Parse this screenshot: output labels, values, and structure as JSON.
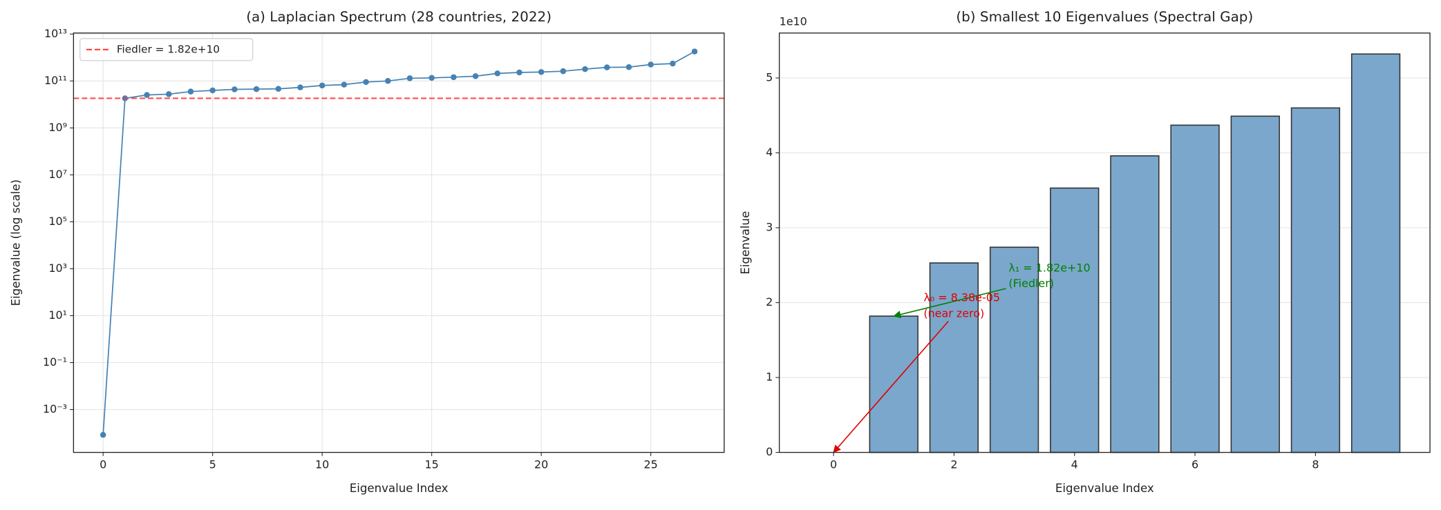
{
  "chart_data": [
    {
      "type": "line",
      "title": "(a) Laplacian Spectrum (28 countries, 2022)",
      "xlabel": "Eigenvalue Index",
      "ylabel": "Eigenvalue (log scale)",
      "x": [
        0,
        1,
        2,
        3,
        4,
        5,
        6,
        7,
        8,
        9,
        10,
        11,
        12,
        13,
        14,
        15,
        16,
        17,
        18,
        19,
        20,
        21,
        22,
        23,
        24,
        25,
        26,
        27
      ],
      "values": [
        8.38e-05,
        18200000000.0,
        25300000000.0,
        27400000000.0,
        35300000000.0,
        39600000000.0,
        43700000000.0,
        44900000000.0,
        46000000000.0,
        53200000000.0,
        64000000000.0,
        70000000000.0,
        90000000000.0,
        100000000000.0,
        130000000000.0,
        135000000000.0,
        145000000000.0,
        160000000000.0,
        210000000000.0,
        230000000000.0,
        240000000000.0,
        260000000000.0,
        320000000000.0,
        380000000000.0,
        390000000000.0,
        500000000000.0,
        550000000000.0,
        1800000000000.0
      ],
      "color": "#4682b4",
      "log_y": true,
      "grid": true,
      "xlim": [
        -1.35,
        28.35
      ],
      "xticks": [
        0,
        5,
        10,
        15,
        20,
        25
      ],
      "ylim": [
        1.5e-05,
        11000000000000.0
      ],
      "yticks": [
        {
          "value": 0.001,
          "label": "10⁻³"
        },
        {
          "value": 0.1,
          "label": "10⁻¹"
        },
        {
          "value": 10,
          "label": "10¹"
        },
        {
          "value": 1000,
          "label": "10³"
        },
        {
          "value": 100000.0,
          "label": "10⁵"
        },
        {
          "value": 10000000.0,
          "label": "10⁷"
        },
        {
          "value": 1000000000.0,
          "label": "10⁹"
        },
        {
          "value": 100000000000.0,
          "label": "10¹¹"
        },
        {
          "value": 10000000000000.0,
          "label": "10¹³"
        }
      ],
      "hline": {
        "value": 18200000000.0,
        "label": "Fiedler = 1.82e+10",
        "color": "#ff3b3b"
      },
      "legend": "upper left"
    },
    {
      "type": "bar",
      "title": "(b) Smallest 10 Eigenvalues (Spectral Gap)",
      "xlabel": "Eigenvalue Index",
      "ylabel": "Eigenvalue",
      "x": [
        0,
        1,
        2,
        3,
        4,
        5,
        6,
        7,
        8,
        9
      ],
      "values": [
        8.38e-05,
        18200000000.0,
        25300000000.0,
        27400000000.0,
        35300000000.0,
        39600000000.0,
        43700000000.0,
        44900000000.0,
        46000000000.0,
        53200000000.0
      ],
      "color": "#7ba7cc",
      "edgecolor": "#333333",
      "grid": true,
      "xlim": [
        -0.9,
        9.9
      ],
      "xticks": [
        0,
        2,
        4,
        6,
        8
      ],
      "ylim": [
        0,
        56000000000.0
      ],
      "yticks": [
        {
          "value": 0,
          "label": "0"
        },
        {
          "value": 10000000000.0,
          "label": "1"
        },
        {
          "value": 20000000000.0,
          "label": "2"
        },
        {
          "value": 30000000000.0,
          "label": "3"
        },
        {
          "value": 40000000000.0,
          "label": "4"
        },
        {
          "value": 50000000000.0,
          "label": "5"
        }
      ],
      "y_offset_label": "1e10",
      "annotations": [
        {
          "lines": [
            "λ₁ = 1.82e+10",
            "(Fiedler)"
          ],
          "x": 1,
          "y": 18200000000.0,
          "color": "#008000"
        },
        {
          "lines": [
            "λ₀ = 8.38e-05",
            "(near zero)"
          ],
          "x": 0,
          "y": 8.38e-05,
          "color": "#e00000"
        }
      ]
    }
  ]
}
